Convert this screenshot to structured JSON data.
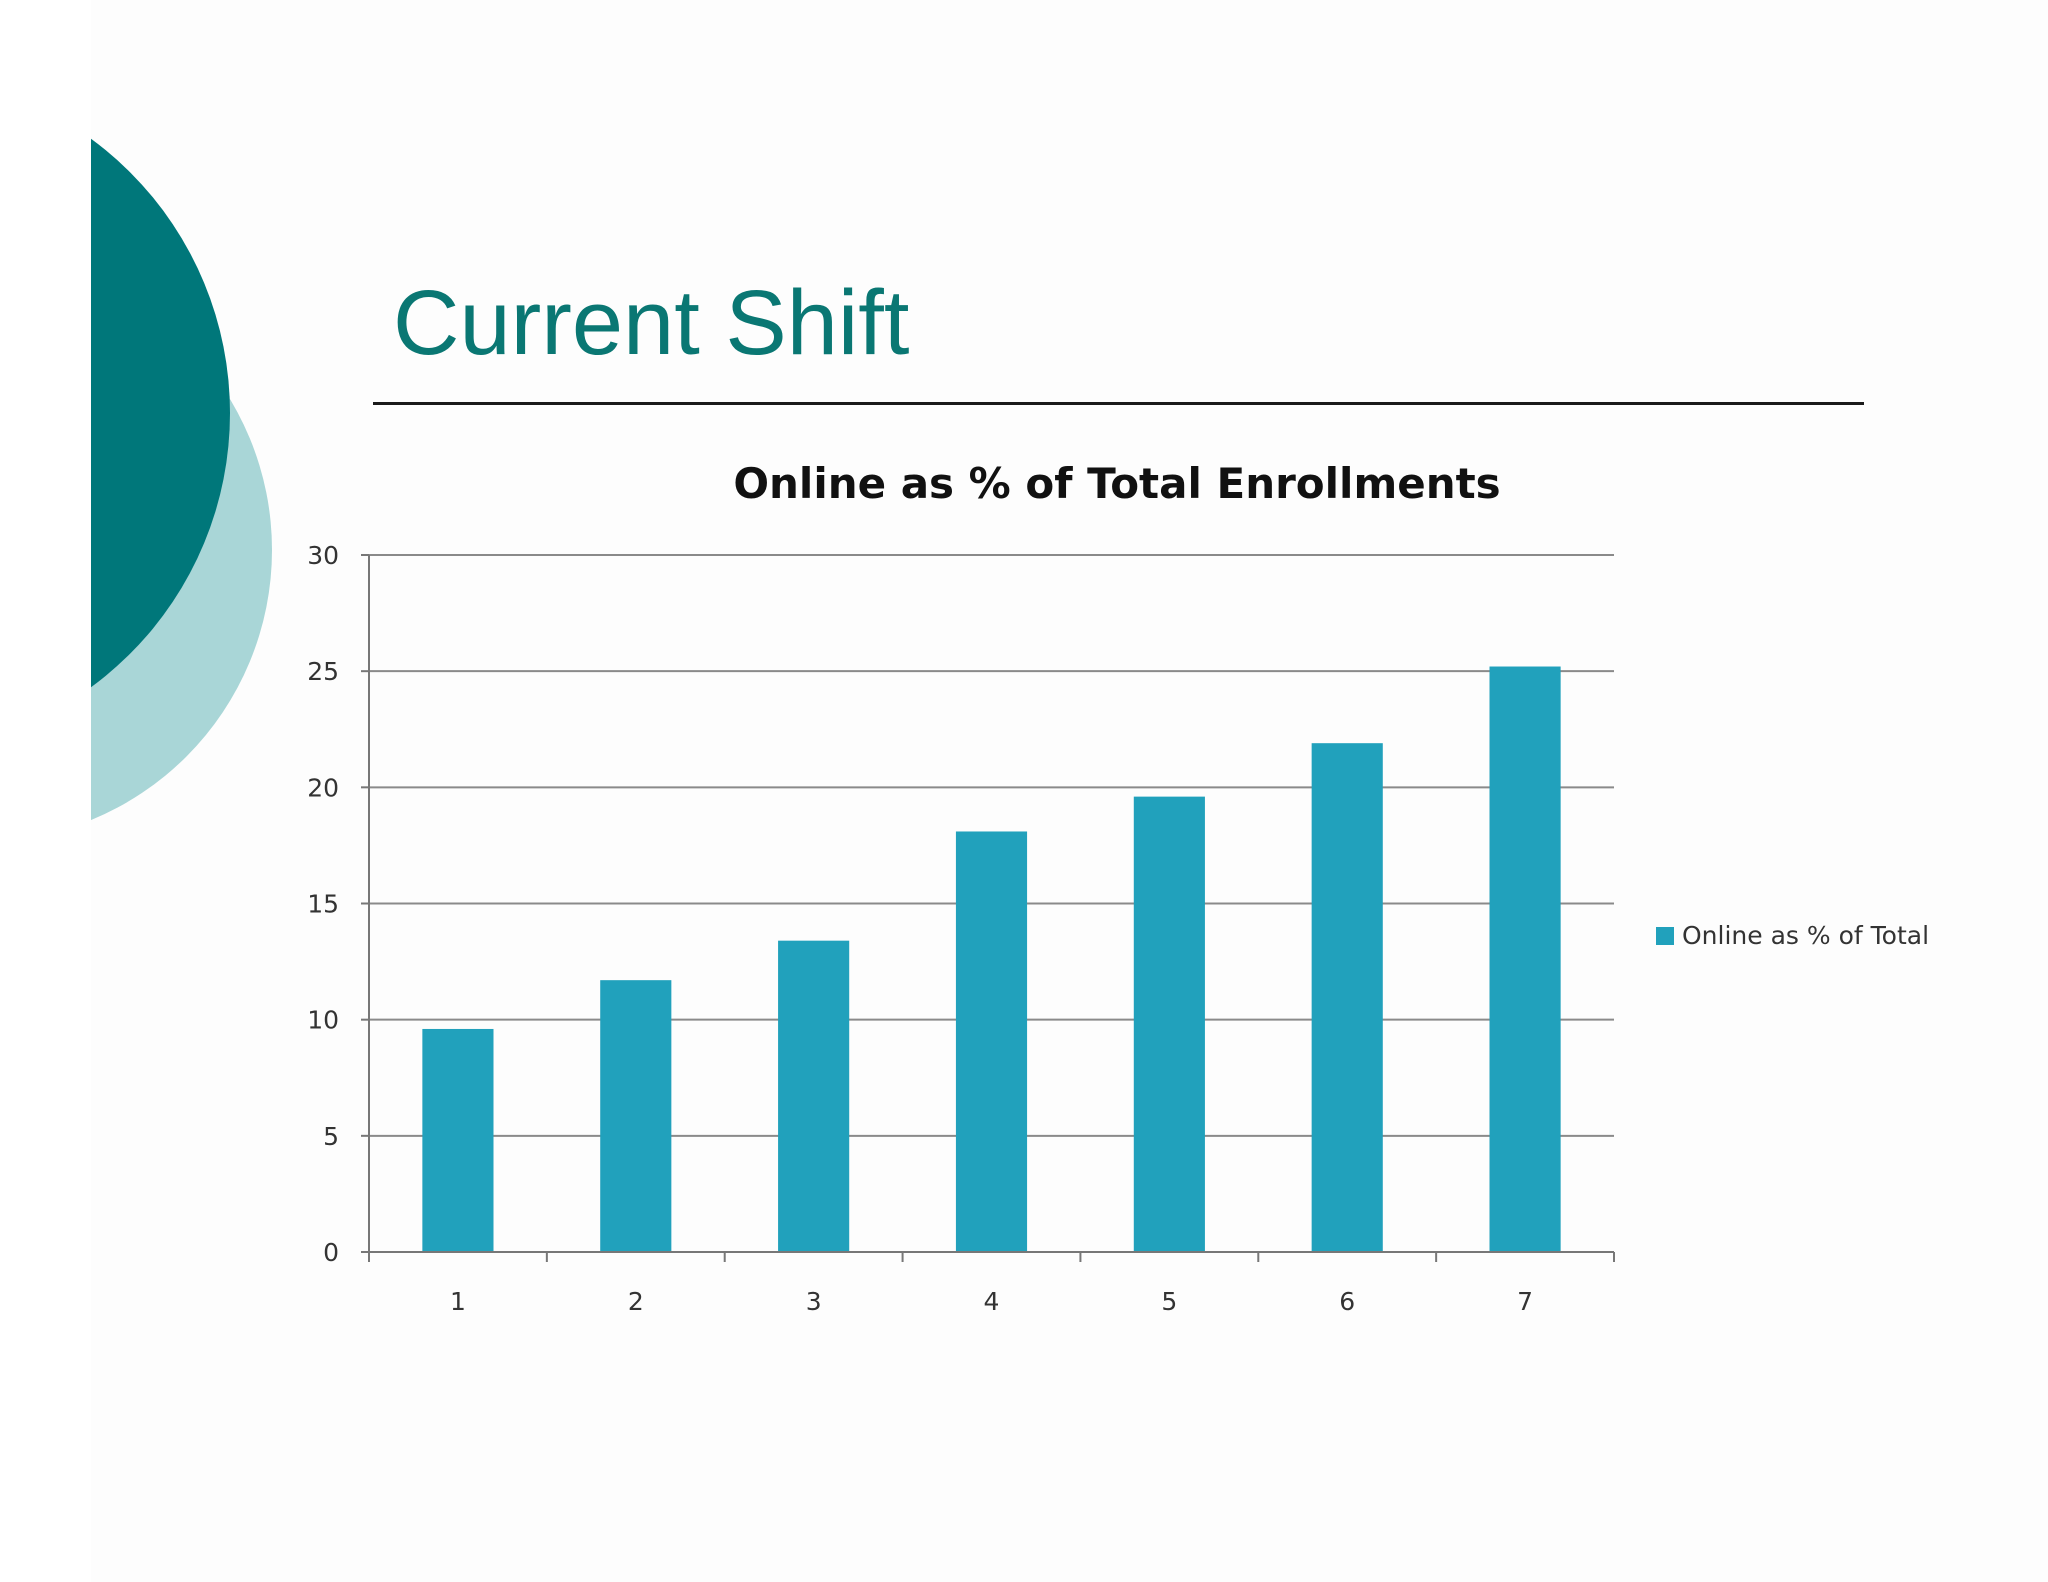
{
  "slide": {
    "title": "Current Shift"
  },
  "colors": {
    "accent_dark": "#00777a",
    "accent_light": "#a9d6d7",
    "title_text": "#0a7773",
    "bar": "#21a1bc"
  },
  "chart_data": {
    "type": "bar",
    "title": "Online as % of Total Enrollments",
    "categories": [
      "1",
      "2",
      "3",
      "4",
      "5",
      "6",
      "7"
    ],
    "series": [
      {
        "name": "Online as % of Total",
        "values": [
          9.6,
          11.7,
          13.4,
          18.1,
          19.6,
          21.9,
          25.2
        ]
      }
    ],
    "y_ticks": [
      "0",
      "5",
      "10",
      "15",
      "20",
      "25",
      "30"
    ],
    "ylim": [
      0,
      30
    ],
    "grid": true,
    "legend_position": "right"
  }
}
